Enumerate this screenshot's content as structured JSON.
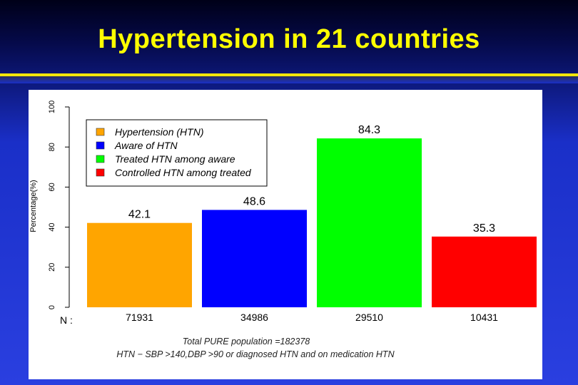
{
  "title": "Hypertension in 21 countries",
  "colors": {
    "accent_yellow": "#ffff00",
    "background_blue": "#2a3fe0"
  },
  "chart_data": {
    "type": "bar",
    "categories": [
      "Hypertension (HTN)",
      "Aware of HTN",
      "Treated HTN among aware",
      "Controlled HTN among treated"
    ],
    "values": [
      42.1,
      48.6,
      84.3,
      35.3
    ],
    "value_labels": [
      "42.1",
      "48.6",
      "84.3",
      "35.3"
    ],
    "colors": [
      "#ffa500",
      "#0000ff",
      "#00ff00",
      "#ff0000"
    ],
    "n_label": "N :",
    "n_values": [
      "71931",
      "34986",
      "29510",
      "10431"
    ],
    "ylabel": "Percentage(%)",
    "ylim": [
      0,
      100
    ],
    "yticks": [
      0,
      20,
      40,
      60,
      80,
      100
    ],
    "legend_position": "top-left",
    "footnotes": [
      "Total PURE population =182378",
      "HTN − SBP >140,DBP >90 or diagnosed HTN and on medication HTN"
    ]
  }
}
